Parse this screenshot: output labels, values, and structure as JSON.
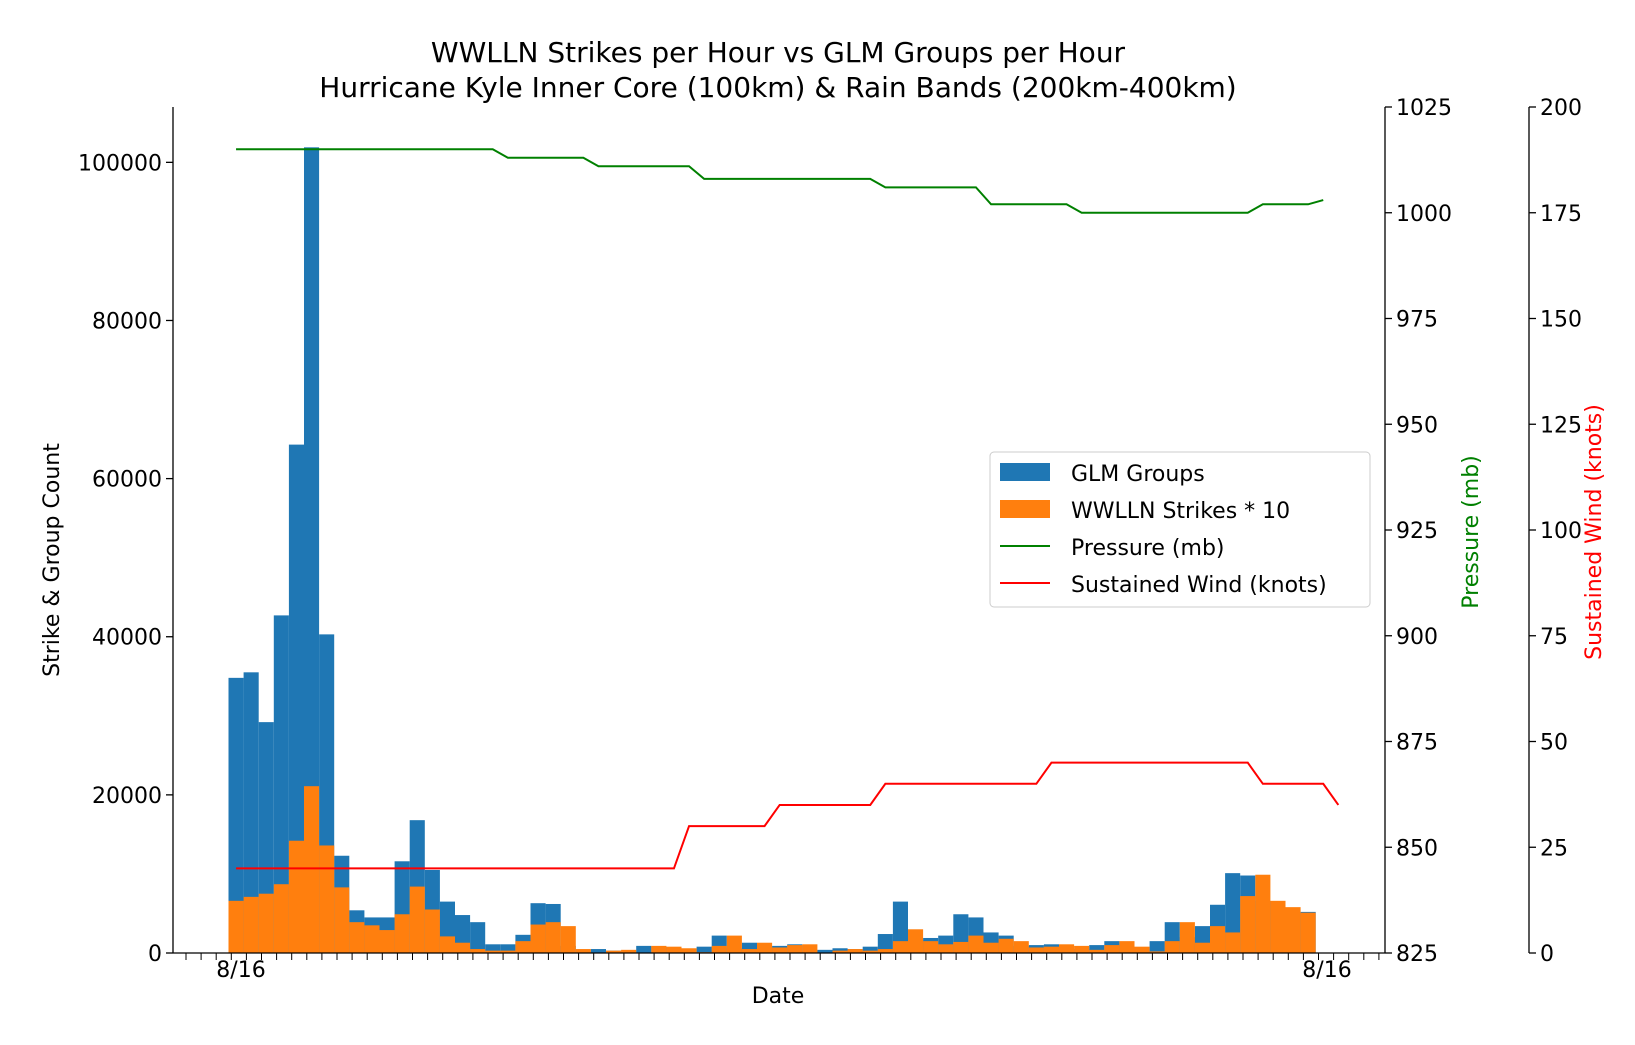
{
  "chart_data": {
    "type": "bar",
    "title": "WWLLN Strikes per Hour vs GLM Groups per Hour",
    "subtitle": "Hurricane Kyle Inner Core (100km) & Rain Bands (200km-400km)",
    "xlabel": "Date",
    "ylabel": "Strike & Group Count",
    "ylim": [
      0,
      107000
    ],
    "y_ticks": [
      0,
      20000,
      40000,
      60000,
      80000,
      100000
    ],
    "y_tick_labels": [
      "0",
      "20000",
      "40000",
      "60000",
      "80000",
      "100000"
    ],
    "x_tick_labels_visible": [
      "8/16",
      "8/16"
    ],
    "grid": false,
    "legend_position": "center-right",
    "series": [
      {
        "name": "GLM Groups",
        "color": "#1f77b4",
        "kind": "bar",
        "values": [
          34800,
          35500,
          29200,
          42700,
          64300,
          101900,
          40300,
          12300,
          5400,
          4500,
          4500,
          11600,
          16800,
          10500,
          6500,
          4800,
          3900,
          1100,
          1100,
          2300,
          6300,
          6200,
          900,
          100,
          500,
          300,
          300,
          900,
          800,
          700,
          300,
          800,
          2200,
          600,
          1300,
          800,
          900,
          1100,
          300,
          400,
          600,
          500,
          800,
          2400,
          6500,
          1700,
          1900,
          2200,
          4900,
          4500,
          2600,
          2200,
          900,
          1000,
          1100,
          900,
          500,
          1000,
          1500,
          900,
          500,
          1500,
          3900,
          2000,
          3400,
          6100,
          10100,
          9800,
          6600,
          6000,
          5100,
          5200
        ]
      },
      {
        "name": "WWLLN Strikes * 10",
        "color": "#ff7f0e",
        "kind": "bar",
        "values": [
          6600,
          7100,
          7500,
          8700,
          14200,
          21100,
          13600,
          8300,
          3900,
          3500,
          2900,
          4900,
          8400,
          5500,
          2100,
          1300,
          500,
          300,
          300,
          1500,
          3600,
          3900,
          3400,
          500,
          0,
          300,
          400,
          0,
          900,
          800,
          600,
          100,
          900,
          2200,
          500,
          1300,
          700,
          1000,
          1100,
          0,
          300,
          500,
          300,
          500,
          1500,
          3000,
          1500,
          1100,
          1400,
          2200,
          1300,
          1800,
          1500,
          700,
          800,
          1100,
          900,
          400,
          1000,
          1500,
          800,
          200,
          1500,
          3900,
          1300,
          3400,
          2600,
          7200,
          9900,
          6600,
          5800,
          5100
        ]
      },
      {
        "name": "Pressure (mb)",
        "color": "#008000",
        "kind": "line",
        "axis": "pressure",
        "ylabel": "Pressure (mb)",
        "ylim": [
          825,
          1025
        ],
        "y_ticks": [
          825,
          850,
          875,
          900,
          925,
          950,
          975,
          1000,
          1025
        ],
        "y_tick_labels": [
          "825",
          "850",
          "875",
          "900",
          "925",
          "950",
          "975",
          "1000",
          "1025"
        ],
        "values": [
          1015,
          1015,
          1015,
          1015,
          1015,
          1015,
          1015,
          1015,
          1015,
          1015,
          1015,
          1015,
          1015,
          1015,
          1015,
          1015,
          1015,
          1015,
          1013,
          1013,
          1013,
          1013,
          1013,
          1013,
          1011,
          1011,
          1011,
          1011,
          1011,
          1011,
          1011,
          1008,
          1008,
          1008,
          1008,
          1008,
          1008,
          1008,
          1008,
          1008,
          1008,
          1008,
          1008,
          1006,
          1006,
          1006,
          1006,
          1006,
          1006,
          1006,
          1002,
          1002,
          1002,
          1002,
          1002,
          1002,
          1000,
          1000,
          1000,
          1000,
          1000,
          1000,
          1000,
          1000,
          1000,
          1000,
          1000,
          1000,
          1002,
          1002,
          1002,
          1002,
          1003
        ]
      },
      {
        "name": "Sustained Wind (knots)",
        "color": "#ff0000",
        "kind": "line",
        "axis": "wind",
        "ylabel": "Sustained Wind (knots)",
        "ylim": [
          0,
          200
        ],
        "y_ticks": [
          0,
          25,
          50,
          75,
          100,
          125,
          150,
          175,
          200
        ],
        "y_tick_labels": [
          "0",
          "25",
          "50",
          "75",
          "100",
          "125",
          "150",
          "175",
          "200"
        ],
        "values": [
          20,
          20,
          20,
          20,
          20,
          20,
          20,
          20,
          20,
          20,
          20,
          20,
          20,
          20,
          20,
          20,
          20,
          20,
          20,
          20,
          20,
          20,
          20,
          20,
          20,
          20,
          20,
          20,
          20,
          20,
          30,
          30,
          30,
          30,
          30,
          30,
          35,
          35,
          35,
          35,
          35,
          35,
          35,
          40,
          40,
          40,
          40,
          40,
          40,
          40,
          40,
          40,
          40,
          40,
          45,
          45,
          45,
          45,
          45,
          45,
          45,
          45,
          45,
          45,
          45,
          45,
          45,
          45,
          40,
          40,
          40,
          40,
          40,
          35
        ]
      }
    ]
  }
}
